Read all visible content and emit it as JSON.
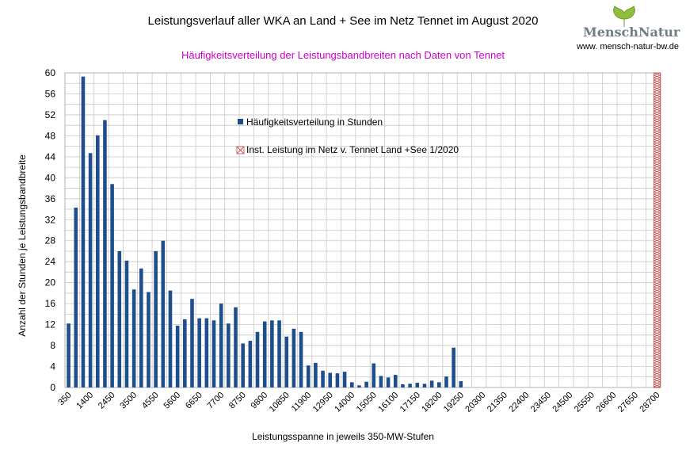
{
  "chart_data": {
    "type": "bar",
    "title": "Leistungsverlauf aller WKA an Land + See im Netz Tennet im August 2020",
    "subtitle": "Häufigkeitsverteilung der Leistungsbandbreiten nach Daten von Tennet",
    "xlabel": "Leistungsspanne in jeweils 350-MW-Stufen",
    "ylabel": "Anzahl der Stunden je Leistungsbandbreite",
    "ylim": [
      0,
      60
    ],
    "ytick_step": 4,
    "grid": true,
    "x_tick_labels": [
      "350",
      "1400",
      "2450",
      "3500",
      "4550",
      "5600",
      "6650",
      "7700",
      "8750",
      "9800",
      "10850",
      "11900",
      "12950",
      "14000",
      "15050",
      "16100",
      "17150",
      "18200",
      "19250",
      "20300",
      "21350",
      "22400",
      "23450",
      "24500",
      "25550",
      "26600",
      "27650",
      "28700"
    ],
    "x_step_mw": 350,
    "x_start_mw": 350,
    "x_end_mw": 28700,
    "series": [
      {
        "name": "Häufigkeitsverteilung in Stunden",
        "color": "#1f4e8c",
        "values": [
          12.2,
          34.3,
          59.3,
          44.7,
          48.1,
          51.0,
          38.8,
          26.0,
          24.2,
          18.7,
          22.7,
          18.2,
          26.0,
          28.0,
          18.5,
          11.8,
          13.0,
          16.9,
          13.2,
          13.2,
          12.8,
          16.0,
          12.2,
          15.3,
          8.4,
          8.9,
          10.6,
          12.6,
          12.8,
          12.8,
          9.7,
          11.2,
          10.6,
          4.2,
          4.7,
          3.2,
          2.8,
          2.7,
          3.0,
          1.0,
          0.4,
          1.1,
          4.6,
          2.2,
          1.9,
          2.4,
          0.6,
          0.7,
          0.9,
          0.7,
          1.3,
          1.0,
          2.1,
          7.6,
          1.2
        ]
      },
      {
        "name": "Inst. Leistung im Netz v. Tennet  Land +See 1/2020",
        "color": "#c0504d",
        "x_mw": 28700,
        "value": 60
      }
    ],
    "legend_placement": "inside-top-center"
  },
  "logo": {
    "name": "MenschNatur",
    "url": "www. mensch-natur-bw.de"
  }
}
